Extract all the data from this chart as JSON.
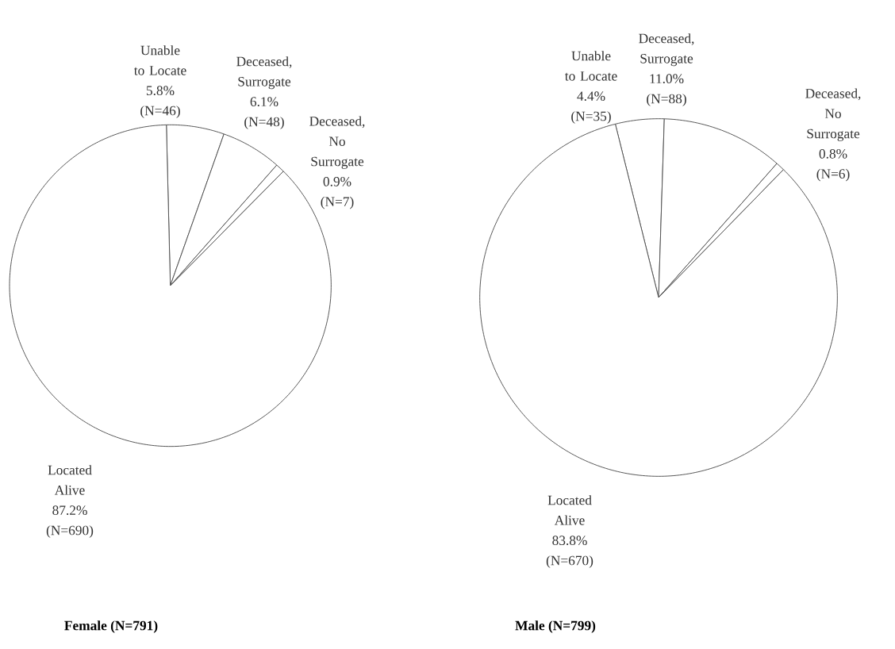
{
  "chart_data": [
    {
      "type": "pie",
      "title": "Female (N=791)",
      "categories": [
        "Unable to Locate",
        "Deceased, Surrogate",
        "Deceased, No Surrogate",
        "Located Alive"
      ],
      "values": [
        5.8,
        6.1,
        0.9,
        87.2
      ],
      "value_labels": [
        "5.8% (N=46)",
        "6.1% (N=48)",
        "0.9% (N=7)",
        "87.2% (N=690)"
      ],
      "colors": [
        "#ffffff",
        "#ffffff",
        "#ffffff",
        "#ffffff"
      ]
    },
    {
      "type": "pie",
      "title": "Male (N=799)",
      "categories": [
        "Unable to Locate",
        "Deceased, Surrogate",
        "Deceased, No Surrogate",
        "Located Alive"
      ],
      "values": [
        4.4,
        11.0,
        0.8,
        83.8
      ],
      "value_labels": [
        "4.4% (N=35)",
        "11.0% (N=88)",
        "0.8% (N=6)",
        "83.8% (N=670)"
      ],
      "colors": [
        "#ffffff",
        "#ffffff",
        "#ffffff",
        "#ffffff"
      ]
    }
  ]
}
